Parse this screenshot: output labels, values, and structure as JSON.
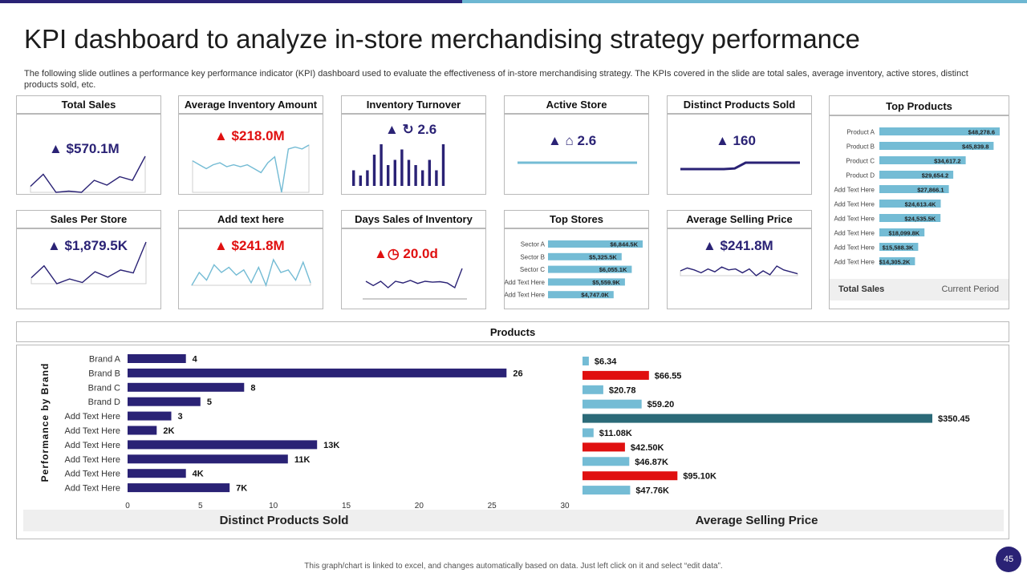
{
  "slide": {
    "title": "KPI dashboard to analyze in-store merchandising strategy performance",
    "subtitle": "The following slide outlines a performance key performance indicator (KPI) dashboard used to evaluate the effectiveness of in-store merchandising strategy. The KPIs covered in the slide are total sales, average inventory, active stores, distinct products sold, etc.",
    "footer_note": "This graph/chart is linked to excel, and changes automatically based on data. Just left click on it and select “edit data”.",
    "page_number": "45",
    "colors": {
      "navy": "#2a2275",
      "red": "#e01010",
      "light_blue": "#74bcd5",
      "teal": "#2b6a78"
    }
  },
  "cards": {
    "total_sales": {
      "title": "Total Sales",
      "value": "▲  $570.1M"
    },
    "avg_inventory": {
      "title": "Average Inventory Amount",
      "value": "▲ $218.0M"
    },
    "inventory_turnover": {
      "title": "Inventory Turnover",
      "value": "▲ ↻ 2.6"
    },
    "active_store": {
      "title": "Active Store",
      "value": "▲ ⌂ 2.6"
    },
    "distinct_products": {
      "title": "Distinct Products Sold",
      "value": "▲  160"
    },
    "top_products": {
      "title": "Top Products",
      "footer_left": "Total Sales",
      "footer_right": "Current Period"
    },
    "sales_per_store": {
      "title": "Sales Per Store",
      "value": "▲ $1,879.5K"
    },
    "add_text": {
      "title": "Add text here",
      "value": "▲ $241.8M"
    },
    "days_sales_inventory": {
      "title": "Days Sales of Inventory",
      "value": "▲◷   20.0d"
    },
    "top_stores": {
      "title": "Top Stores"
    },
    "avg_selling_price": {
      "title": "Average Selling Price",
      "value": "▲  $241.8M"
    }
  },
  "products_section": {
    "title": "Products",
    "left_title": "Distinct Products Sold",
    "right_title": "Average Selling Price"
  },
  "chart_data": [
    {
      "type": "line",
      "name": "total-sales-sparkline",
      "values": [
        3,
        5,
        2,
        2.2,
        2,
        4,
        3.2,
        4.6,
        4,
        8
      ]
    },
    {
      "type": "line",
      "name": "avg-inventory-sparkline",
      "values": [
        7.2,
        7.0,
        6.8,
        7.0,
        7.1,
        6.9,
        7.0,
        6.9,
        7.0,
        6.8,
        6.6,
        7.1,
        7.4,
        5.6,
        7.8,
        7.9,
        7.8,
        8.0
      ]
    },
    {
      "type": "bar",
      "name": "inventory-turnover-bars",
      "values": [
        3,
        2,
        3,
        6,
        8,
        4,
        5,
        7,
        5,
        4,
        3,
        5,
        3,
        8
      ],
      "ylim": [
        0,
        8
      ]
    },
    {
      "type": "line",
      "name": "active-store-line",
      "values": [
        5,
        5,
        5,
        5,
        5,
        5,
        5,
        5,
        5,
        5
      ]
    },
    {
      "type": "line",
      "name": "distinct-products-line",
      "values": [
        2,
        2,
        2,
        2,
        2,
        2.2,
        4,
        4,
        4,
        4,
        4,
        4
      ]
    },
    {
      "type": "bar",
      "name": "top-products",
      "categories": [
        "Product A",
        "Product B",
        "Product C",
        "Product D",
        "Add Text Here",
        "Add Text Here",
        "Add Text Here",
        "Add Text Here",
        "Add Text Here",
        "Add Text Here"
      ],
      "values": [
        48278.6,
        45839.8,
        34617.2,
        29654.2,
        27866.1,
        24613.4,
        24535.5,
        18099.8,
        15588.3,
        14305.2
      ],
      "labels": [
        "$48,278.6",
        "$45,839.8",
        "$34,617.2",
        "$29,654.2",
        "$27,866.1",
        "$24,613.4K",
        "$24,535.5K",
        "$18,099.8K",
        "$15,588.3K",
        "$14,305.2K"
      ]
    },
    {
      "type": "line",
      "name": "sales-per-store-sparkline",
      "values": [
        3,
        5,
        2,
        2.8,
        2.2,
        4,
        3.1,
        4.3,
        3.8,
        9
      ]
    },
    {
      "type": "line",
      "name": "add-text-sparkline",
      "values": [
        4,
        5,
        4.4,
        5.6,
        5,
        5.4,
        4.8,
        5.2,
        4.2,
        5.4,
        4,
        6,
        5,
        5.2,
        4.4,
        5.8,
        4.2
      ]
    },
    {
      "type": "line",
      "name": "days-sales-sparkline",
      "values": [
        4,
        3,
        4,
        2.5,
        4,
        3.6,
        4.2,
        3.5,
        4,
        3.8,
        3.9,
        3.6,
        2.5,
        7
      ]
    },
    {
      "type": "bar",
      "name": "top-stores",
      "categories": [
        "Sector A",
        "Sector B",
        "Sector C",
        "Add Text Here",
        "Add Text Here"
      ],
      "values": [
        6844.5,
        5325.5,
        6055.1,
        5559.9,
        4747.0
      ],
      "labels": [
        "$6,844.5K",
        "$5,325.5K",
        "$6,055.1K",
        "$5,559.9K",
        "$4,747.0K"
      ]
    },
    {
      "type": "line",
      "name": "avg-selling-price-sparkline",
      "values": [
        7,
        7.3,
        7.1,
        6.8,
        7.2,
        6.9,
        7.4,
        7.1,
        7.2,
        6.8,
        7.2,
        6.5,
        7.0,
        6.6,
        7.5,
        7.1,
        6.9,
        6.7
      ]
    },
    {
      "type": "bar",
      "name": "performance-by-brand",
      "ylabel": "Performance by Brand",
      "categories": [
        "Brand A",
        "Brand B",
        "Brand C",
        "Brand D",
        "Add Text Here",
        "Add Text Here",
        "Add Text Here",
        "Add Text Here",
        "Add Text Here",
        "Add Text Here"
      ],
      "values": [
        4,
        26,
        8,
        5,
        3,
        2,
        13,
        11,
        4,
        7
      ],
      "labels": [
        "4",
        "26",
        "8",
        "5",
        "3",
        "2K",
        "13K",
        "11K",
        "4K",
        "7K"
      ],
      "xlim": [
        0,
        30
      ],
      "xticks": [
        0,
        5,
        10,
        15,
        20,
        25,
        30
      ]
    },
    {
      "type": "bar",
      "name": "average-selling-price",
      "values": [
        6.34,
        66.55,
        20.78,
        59.2,
        350.45,
        11.08,
        42.5,
        46.87,
        95.1,
        47.76
      ],
      "labels": [
        "$6.34",
        "$66.55",
        "$20.78",
        "$59.20",
        "$350.45",
        "$11.08K",
        "$42.50K",
        "$46.87K",
        "$95.10K",
        "$47.76K"
      ],
      "colors": [
        "#74bcd5",
        "#e01010",
        "#74bcd5",
        "#74bcd5",
        "#2b6a78",
        "#74bcd5",
        "#e01010",
        "#74bcd5",
        "#e01010",
        "#74bcd5"
      ]
    }
  ]
}
